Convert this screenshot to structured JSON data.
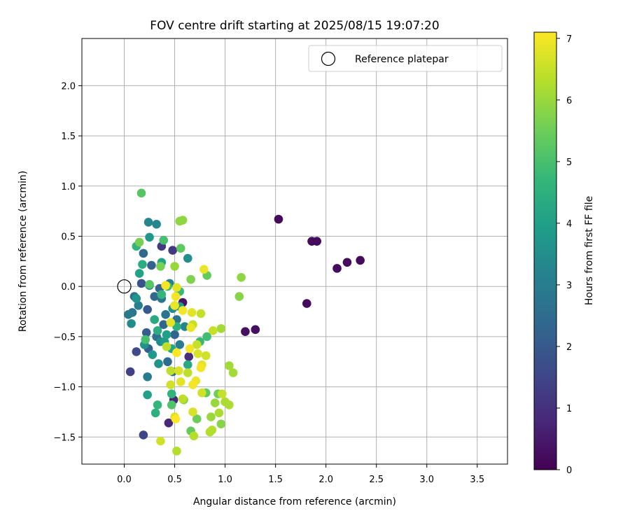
{
  "chart_data": {
    "type": "scatter",
    "title": "FOV centre drift starting at 2025/08/15 19:07:20",
    "xlabel": "Angular distance from reference (arcmin)",
    "ylabel": "Rotation from reference (arcmin)",
    "xlim": [
      -0.42,
      3.8
    ],
    "ylim": [
      -1.77,
      2.47
    ],
    "xticks": [
      0.0,
      0.5,
      1.0,
      1.5,
      2.0,
      2.5,
      3.0,
      3.5
    ],
    "yticks": [
      -1.5,
      -1.0,
      -0.5,
      0.0,
      0.5,
      1.0,
      1.5,
      2.0
    ],
    "xtick_labels": [
      "0.0",
      "0.5",
      "1.0",
      "1.5",
      "2.0",
      "2.5",
      "3.0",
      "3.5"
    ],
    "ytick_labels": [
      "−1.5",
      "−1.0",
      "−0.5",
      "0.0",
      "0.5",
      "1.0",
      "1.5",
      "2.0"
    ],
    "grid": true,
    "legend": {
      "placement": "top-right",
      "entries": [
        "Reference platepar"
      ]
    },
    "reference_point": {
      "x": 0.0,
      "y": 0.0
    },
    "colorbar": {
      "label": "Hours from first FF file",
      "min": 0,
      "max": 7.1,
      "ticks": [
        0,
        1,
        2,
        3,
        4,
        5,
        6,
        7
      ],
      "tick_labels": [
        "0",
        "1",
        "2",
        "3",
        "4",
        "5",
        "6",
        "7"
      ],
      "colormap": "viridis",
      "colors": [
        "#440154",
        "#482878",
        "#3e4989",
        "#31688e",
        "#26828e",
        "#1f9e89",
        "#35b779",
        "#6ece58",
        "#b5de2b",
        "#fde725"
      ]
    },
    "points": [
      {
        "x": 1.53,
        "y": 0.67,
        "h": 0.2
      },
      {
        "x": 1.86,
        "y": 0.45,
        "h": 0.2
      },
      {
        "x": 1.91,
        "y": 0.45,
        "h": 0.2
      },
      {
        "x": 2.11,
        "y": 0.18,
        "h": 0.2
      },
      {
        "x": 2.21,
        "y": 0.24,
        "h": 0.2
      },
      {
        "x": 2.34,
        "y": 0.26,
        "h": 0.2
      },
      {
        "x": 1.81,
        "y": -0.17,
        "h": 0.2
      },
      {
        "x": 1.2,
        "y": -0.45,
        "h": 0.3
      },
      {
        "x": 1.3,
        "y": -0.43,
        "h": 0.3
      },
      {
        "x": 0.58,
        "y": -0.16,
        "h": 0.4
      },
      {
        "x": 0.44,
        "y": -1.36,
        "h": 0.8
      },
      {
        "x": 0.49,
        "y": -1.13,
        "h": 0.8
      },
      {
        "x": 0.64,
        "y": -0.7,
        "h": 0.9
      },
      {
        "x": 0.37,
        "y": 0.4,
        "h": 1.2
      },
      {
        "x": 0.48,
        "y": 0.36,
        "h": 1.2
      },
      {
        "x": 0.06,
        "y": -0.85,
        "h": 1.4
      },
      {
        "x": 0.19,
        "y": -1.48,
        "h": 1.5
      },
      {
        "x": 0.12,
        "y": -0.65,
        "h": 1.6
      },
      {
        "x": 0.17,
        "y": 0.03,
        "h": 1.8
      },
      {
        "x": 0.23,
        "y": -0.23,
        "h": 2.0
      },
      {
        "x": 0.22,
        "y": -0.46,
        "h": 2.1
      },
      {
        "x": 0.24,
        "y": -0.62,
        "h": 2.1
      },
      {
        "x": 0.27,
        "y": 0.21,
        "h": 2.2
      },
      {
        "x": 0.35,
        "y": -0.02,
        "h": 2.2
      },
      {
        "x": 0.39,
        "y": -0.38,
        "h": 2.3
      },
      {
        "x": 0.5,
        "y": -0.48,
        "h": 2.3
      },
      {
        "x": 0.19,
        "y": 0.33,
        "h": 2.4
      },
      {
        "x": 0.3,
        "y": -0.1,
        "h": 2.4
      },
      {
        "x": 0.43,
        "y": -0.75,
        "h": 2.5
      },
      {
        "x": 0.48,
        "y": -0.85,
        "h": 2.5
      },
      {
        "x": 0.1,
        "y": -0.1,
        "h": 2.6
      },
      {
        "x": 0.32,
        "y": -0.5,
        "h": 2.6
      },
      {
        "x": 0.41,
        "y": -0.28,
        "h": 2.7
      },
      {
        "x": 0.52,
        "y": -0.33,
        "h": 2.7
      },
      {
        "x": 0.08,
        "y": -0.26,
        "h": 2.8
      },
      {
        "x": 0.37,
        "y": -0.12,
        "h": 2.8
      },
      {
        "x": 0.04,
        "y": -0.28,
        "h": 2.9
      },
      {
        "x": 0.23,
        "y": -0.9,
        "h": 2.9
      },
      {
        "x": 0.55,
        "y": -0.58,
        "h": 3.0
      },
      {
        "x": 0.14,
        "y": -0.19,
        "h": 3.0
      },
      {
        "x": 0.25,
        "y": 0.01,
        "h": 3.1
      },
      {
        "x": 0.45,
        "y": 0.03,
        "h": 3.1
      },
      {
        "x": 0.6,
        "y": -0.4,
        "h": 3.2
      },
      {
        "x": 0.24,
        "y": 0.64,
        "h": 3.3
      },
      {
        "x": 0.32,
        "y": 0.62,
        "h": 3.3
      },
      {
        "x": 0.07,
        "y": -0.37,
        "h": 3.4
      },
      {
        "x": 0.36,
        "y": -0.55,
        "h": 3.4
      },
      {
        "x": 0.48,
        "y": -0.22,
        "h": 3.5
      },
      {
        "x": 0.63,
        "y": 0.28,
        "h": 3.5
      },
      {
        "x": 0.2,
        "y": -0.58,
        "h": 3.6
      },
      {
        "x": 0.34,
        "y": -0.77,
        "h": 3.6
      },
      {
        "x": 0.12,
        "y": -0.12,
        "h": 3.7
      },
      {
        "x": 0.25,
        "y": 0.49,
        "h": 3.8
      },
      {
        "x": 0.28,
        "y": -0.68,
        "h": 3.8
      },
      {
        "x": 0.4,
        "y": -0.55,
        "h": 3.9
      },
      {
        "x": 0.55,
        "y": -0.2,
        "h": 3.9
      },
      {
        "x": 0.23,
        "y": -1.08,
        "h": 4.0
      },
      {
        "x": 0.42,
        "y": -0.48,
        "h": 4.0
      },
      {
        "x": 0.15,
        "y": 0.13,
        "h": 4.1
      },
      {
        "x": 0.37,
        "y": 0.24,
        "h": 4.1
      },
      {
        "x": 0.47,
        "y": -0.62,
        "h": 4.2
      },
      {
        "x": 0.3,
        "y": -0.33,
        "h": 4.3
      },
      {
        "x": 0.63,
        "y": -0.78,
        "h": 4.3
      },
      {
        "x": 0.18,
        "y": 0.22,
        "h": 4.4
      },
      {
        "x": 0.33,
        "y": -0.44,
        "h": 4.4
      },
      {
        "x": 0.52,
        "y": -0.4,
        "h": 4.5
      },
      {
        "x": 0.31,
        "y": -1.26,
        "h": 4.5
      },
      {
        "x": 0.12,
        "y": 0.4,
        "h": 4.6
      },
      {
        "x": 0.47,
        "y": -1.07,
        "h": 4.6
      },
      {
        "x": 0.33,
        "y": -1.18,
        "h": 4.7
      },
      {
        "x": 0.37,
        "y": -0.08,
        "h": 4.7
      },
      {
        "x": 0.55,
        "y": -0.05,
        "h": 4.8
      },
      {
        "x": 0.75,
        "y": -0.55,
        "h": 4.8
      },
      {
        "x": 0.43,
        "y": 0.0,
        "h": 4.9
      },
      {
        "x": 0.82,
        "y": -0.5,
        "h": 4.9
      },
      {
        "x": 0.21,
        "y": -0.53,
        "h": 5.0
      },
      {
        "x": 0.39,
        "y": 0.46,
        "h": 5.0
      },
      {
        "x": 0.47,
        "y": -1.18,
        "h": 5.1
      },
      {
        "x": 0.17,
        "y": 0.93,
        "h": 5.2
      },
      {
        "x": 0.25,
        "y": 0.02,
        "h": 5.2
      },
      {
        "x": 0.56,
        "y": 0.38,
        "h": 5.3
      },
      {
        "x": 0.81,
        "y": -1.06,
        "h": 5.3
      },
      {
        "x": 0.82,
        "y": 0.11,
        "h": 5.4
      },
      {
        "x": 0.66,
        "y": -1.44,
        "h": 5.4
      },
      {
        "x": 0.93,
        "y": -1.07,
        "h": 5.5
      },
      {
        "x": 0.72,
        "y": -1.32,
        "h": 5.5
      },
      {
        "x": 0.15,
        "y": 0.44,
        "h": 5.6
      },
      {
        "x": 0.36,
        "y": 0.2,
        "h": 5.6
      },
      {
        "x": 0.66,
        "y": 0.07,
        "h": 5.7
      },
      {
        "x": 0.59,
        "y": -1.13,
        "h": 5.7
      },
      {
        "x": 0.96,
        "y": -1.37,
        "h": 5.8
      },
      {
        "x": 1.14,
        "y": -0.1,
        "h": 5.8
      },
      {
        "x": 1.16,
        "y": 0.09,
        "h": 5.9
      },
      {
        "x": 0.55,
        "y": 0.65,
        "h": 5.9
      },
      {
        "x": 0.58,
        "y": 0.66,
        "h": 5.9
      },
      {
        "x": 0.5,
        "y": 0.2,
        "h": 6.0
      },
      {
        "x": 0.9,
        "y": -1.16,
        "h": 6.0
      },
      {
        "x": 0.86,
        "y": -1.3,
        "h": 6.0
      },
      {
        "x": 0.96,
        "y": -0.42,
        "h": 6.1
      },
      {
        "x": 1.08,
        "y": -0.86,
        "h": 6.1
      },
      {
        "x": 1.04,
        "y": -0.79,
        "h": 6.1
      },
      {
        "x": 1.0,
        "y": -1.15,
        "h": 6.2
      },
      {
        "x": 1.04,
        "y": -1.18,
        "h": 6.2
      },
      {
        "x": 0.94,
        "y": -1.26,
        "h": 6.2
      },
      {
        "x": 0.52,
        "y": -1.64,
        "h": 6.3
      },
      {
        "x": 0.69,
        "y": -1.49,
        "h": 6.3
      },
      {
        "x": 0.87,
        "y": -1.43,
        "h": 6.3
      },
      {
        "x": 0.85,
        "y": -1.45,
        "h": 6.3
      },
      {
        "x": 0.42,
        "y": -0.6,
        "h": 6.4
      },
      {
        "x": 0.46,
        "y": -0.84,
        "h": 6.4
      },
      {
        "x": 0.58,
        "y": -1.12,
        "h": 6.4
      },
      {
        "x": 0.63,
        "y": -0.86,
        "h": 6.4
      },
      {
        "x": 0.76,
        "y": -0.27,
        "h": 6.5
      },
      {
        "x": 0.68,
        "y": -0.38,
        "h": 6.5
      },
      {
        "x": 0.72,
        "y": -0.58,
        "h": 6.5
      },
      {
        "x": 0.88,
        "y": -0.44,
        "h": 6.5
      },
      {
        "x": 0.97,
        "y": -1.07,
        "h": 6.5
      },
      {
        "x": 0.77,
        "y": -1.06,
        "h": 6.6
      },
      {
        "x": 0.81,
        "y": -0.69,
        "h": 6.6
      },
      {
        "x": 0.36,
        "y": -1.54,
        "h": 6.6
      },
      {
        "x": 0.46,
        "y": -0.98,
        "h": 6.6
      },
      {
        "x": 0.5,
        "y": -1.3,
        "h": 6.7
      },
      {
        "x": 0.54,
        "y": -0.84,
        "h": 6.7
      },
      {
        "x": 0.68,
        "y": -1.25,
        "h": 6.7
      },
      {
        "x": 0.73,
        "y": -0.67,
        "h": 6.7
      },
      {
        "x": 0.77,
        "y": -0.78,
        "h": 6.8
      },
      {
        "x": 0.46,
        "y": -0.36,
        "h": 6.8
      },
      {
        "x": 0.52,
        "y": -0.01,
        "h": 6.8
      },
      {
        "x": 0.56,
        "y": -0.95,
        "h": 6.8
      },
      {
        "x": 0.67,
        "y": -0.26,
        "h": 6.8
      },
      {
        "x": 0.66,
        "y": -0.41,
        "h": 6.9
      },
      {
        "x": 0.79,
        "y": 0.17,
        "h": 6.9
      },
      {
        "x": 0.5,
        "y": -0.19,
        "h": 6.9
      },
      {
        "x": 0.71,
        "y": -0.94,
        "h": 6.9
      },
      {
        "x": 0.76,
        "y": -0.81,
        "h": 7.0
      },
      {
        "x": 0.65,
        "y": -0.62,
        "h": 7.0
      },
      {
        "x": 0.58,
        "y": -0.24,
        "h": 7.0
      },
      {
        "x": 0.41,
        "y": 0.01,
        "h": 7.0
      },
      {
        "x": 0.51,
        "y": -0.1,
        "h": 7.0
      },
      {
        "x": 0.68,
        "y": -0.98,
        "h": 7.0
      },
      {
        "x": 0.52,
        "y": -0.66,
        "h": 7.1
      },
      {
        "x": 0.51,
        "y": -1.32,
        "h": 7.1
      }
    ]
  }
}
